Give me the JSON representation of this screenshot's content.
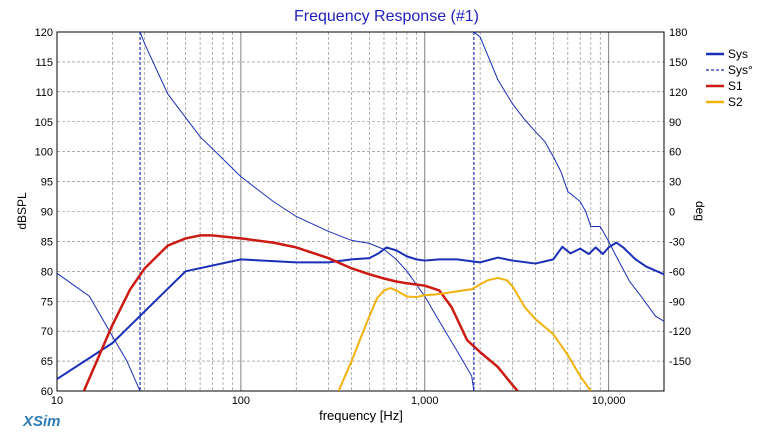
{
  "chart_data": {
    "type": "line",
    "title": "Frequency Response (#1)",
    "xlabel": "frequency [Hz]",
    "ylabel": "dBSPL",
    "y2label": "deg",
    "x_scale": "log",
    "xlim": [
      10,
      20000
    ],
    "ylim": [
      60,
      120
    ],
    "y2lim": [
      -180,
      180
    ],
    "x_ticks": [
      10,
      100,
      1000,
      10000
    ],
    "x_tick_labels": [
      "10",
      "100",
      "1,000",
      "10,000"
    ],
    "y_ticks": [
      60,
      65,
      70,
      75,
      80,
      85,
      90,
      95,
      100,
      105,
      110,
      115,
      120
    ],
    "y2_ticks": [
      180,
      150,
      120,
      90,
      60,
      30,
      0,
      -30,
      -60,
      -90,
      -120,
      -150
    ],
    "grid": true,
    "legend_position": "top-right",
    "series": [
      {
        "name": "Sys",
        "color": "#1a2fb8",
        "axis": "left",
        "width": 2,
        "x": [
          10,
          20,
          50,
          100,
          200,
          300,
          400,
          500,
          560,
          620,
          700,
          800,
          900,
          1000,
          1200,
          1500,
          2000,
          2500,
          3000,
          4000,
          5000,
          5600,
          6200,
          7000,
          7800,
          8500,
          9300,
          10000,
          11000,
          12000,
          14000,
          16000,
          20000
        ],
        "y": [
          62,
          68,
          80,
          82,
          81.5,
          81.5,
          82,
          82.2,
          83,
          84,
          83.5,
          82.5,
          82,
          81.8,
          82,
          82,
          81.5,
          82.3,
          81.8,
          81.3,
          82,
          84.1,
          83,
          83.8,
          82.9,
          84,
          82.9,
          84,
          84.8,
          84,
          82,
          80.8,
          79.5
        ]
      },
      {
        "name": "Sys°",
        "color": "#1a2fb8",
        "axis": "right",
        "dashed_legend": true,
        "style": "phase",
        "x": [
          10,
          15,
          20,
          24,
          28.3,
          28.3,
          30,
          40,
          60,
          100,
          150,
          200,
          300,
          400,
          500,
          600,
          700,
          800,
          1000,
          1200,
          1500,
          1800,
          1850,
          1850,
          2000,
          2500,
          3000,
          3500,
          4000,
          4500,
          5000,
          5500,
          6000,
          7000,
          7500,
          8000,
          9000,
          10000,
          11000,
          13000,
          15000,
          18000,
          20000
        ],
        "y": [
          -62,
          -85,
          -125,
          -150,
          -180,
          180,
          168,
          118,
          75,
          35,
          10,
          -5,
          -20,
          -29,
          -32,
          -38,
          -48,
          -60,
          -85,
          -110,
          -140,
          -165,
          -180,
          180,
          175,
          132,
          108,
          92,
          80,
          70,
          55,
          40,
          20,
          10,
          0,
          -15,
          -15,
          -30,
          -45,
          -70,
          -85,
          -105,
          -110
        ]
      },
      {
        "name": "S1",
        "color": "#cc1a12",
        "axis": "left",
        "width": 2.5,
        "x": [
          14,
          17,
          20,
          25,
          30,
          40,
          50,
          60,
          70,
          100,
          150,
          200,
          300,
          400,
          500,
          600,
          700,
          800,
          1000,
          1200,
          1400,
          1700,
          2000,
          2500,
          3000,
          3200
        ],
        "y": [
          60,
          66,
          71,
          77,
          80.5,
          84.3,
          85.5,
          86,
          86,
          85.5,
          84.8,
          84,
          82.2,
          80.5,
          79.5,
          78.8,
          78.3,
          78,
          77.6,
          76.8,
          74,
          68.5,
          66.5,
          64,
          61,
          60
        ]
      },
      {
        "name": "S2",
        "color": "#f2b20c",
        "axis": "left",
        "width": 2,
        "x": [
          340,
          400,
          450,
          500,
          550,
          600,
          650,
          700,
          800,
          900,
          1000,
          1200,
          1400,
          1600,
          1800,
          2000,
          2200,
          2500,
          2800,
          3000,
          3500,
          4000,
          5000,
          6000,
          7000,
          8000
        ],
        "y": [
          60,
          65,
          69,
          72.5,
          75.5,
          76.8,
          77.2,
          76.8,
          75.8,
          75.7,
          76,
          76.2,
          76.5,
          76.8,
          77,
          77.8,
          78.5,
          78.9,
          78.5,
          77.5,
          74,
          72,
          69.5,
          66,
          62.5,
          60
        ]
      }
    ]
  },
  "footer": {
    "brand": "XSim"
  }
}
